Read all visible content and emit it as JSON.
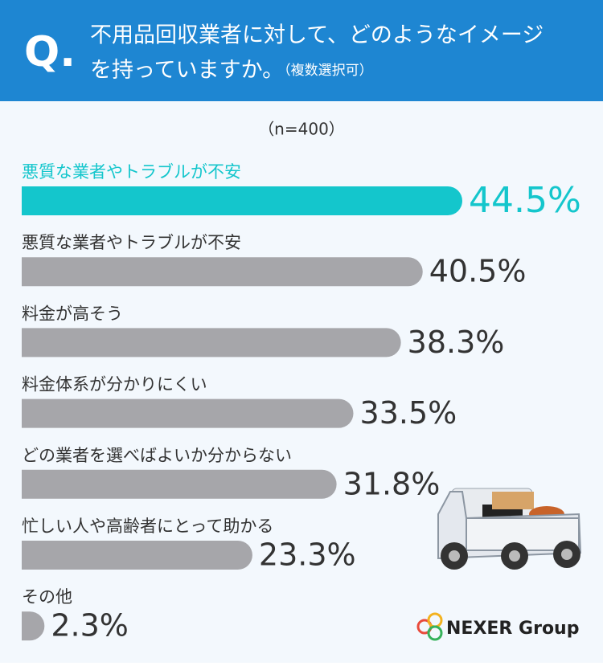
{
  "header": {
    "mark": "Q.",
    "title_line1": "不用品回収業者に対して、どのようなイメージ",
    "title_line2": "を持っていますか。",
    "title_note": "（複数選択可）"
  },
  "chart_data": {
    "type": "bar",
    "orientation": "horizontal",
    "subtitle": "（n=400）",
    "categories": [
      "悪質な業者やトラブルが不安",
      "悪質な業者やトラブルが不安",
      "料金が高そう",
      "料金体系が分かりにくい",
      "どの業者を選べばよいか分からない",
      "忙しい人や高齢者にとって助かる",
      "その他"
    ],
    "values": [
      44.5,
      40.5,
      38.3,
      33.5,
      31.8,
      23.3,
      2.3
    ],
    "value_labels": [
      "44.5%",
      "40.5%",
      "38.3%",
      "33.5%",
      "31.8%",
      "23.3%",
      "2.3%"
    ],
    "colors": [
      "#14c6cc",
      "#a6a6aa",
      "#a6a6aa",
      "#a6a6aa",
      "#a6a6aa",
      "#a6a6aa",
      "#a6a6aa"
    ],
    "highlight_label_color": "#14c6cc"
  },
  "logo": {
    "text": "NEXER Group"
  }
}
